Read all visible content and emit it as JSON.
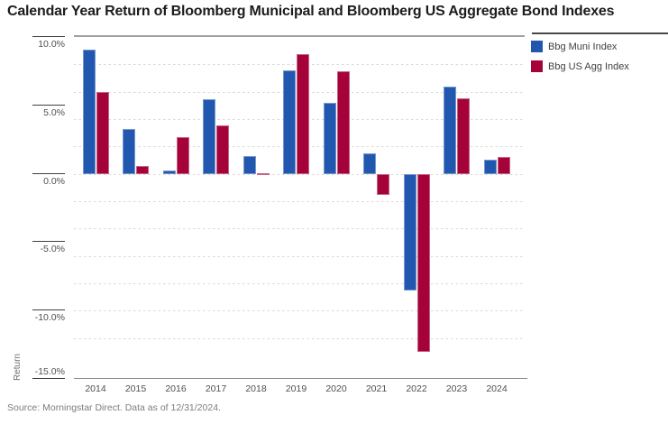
{
  "title": "Calendar Year Return of Bloomberg Municipal and Bloomberg US Aggregate Bond Indexes",
  "source": "Source: Morningstar Direct. Data as of 12/31/2024.",
  "legend": {
    "items": [
      {
        "label": "Bbg Muni Index",
        "color": "#2157ae"
      },
      {
        "label": "Bbg US Agg Index",
        "color": "#a40239"
      }
    ]
  },
  "chart_data": {
    "type": "bar",
    "categories": [
      "2014",
      "2015",
      "2016",
      "2017",
      "2018",
      "2019",
      "2020",
      "2021",
      "2022",
      "2023",
      "2024"
    ],
    "series": [
      {
        "name": "Bbg Muni Index",
        "color": "#2157ae",
        "values": [
          9.05,
          3.3,
          0.25,
          5.45,
          1.28,
          7.54,
          5.21,
          1.52,
          -8.53,
          6.4,
          1.05
        ]
      },
      {
        "name": "Bbg US Agg Index",
        "color": "#a40239",
        "values": [
          5.97,
          0.55,
          2.65,
          3.54,
          0.01,
          8.72,
          7.51,
          -1.54,
          -13.01,
          5.53,
          1.25
        ]
      }
    ],
    "title": "Calendar Year Return of Bloomberg Municipal and Bloomberg US Aggregate Bond Indexes",
    "xlabel": "",
    "ylabel": "Return",
    "ylim": [
      -15,
      10
    ],
    "yticks": [
      10,
      5,
      0,
      -5,
      -10,
      -15
    ],
    "ytick_labels": [
      "10.0%",
      "5.0%",
      "0.0%",
      "-5.0%",
      "-10.0%",
      "-15.0%"
    ],
    "minor_gridlines": [
      8,
      6,
      4,
      2,
      0,
      -2,
      -4,
      -6,
      -8,
      -10,
      -12
    ],
    "grid": "dotted-horizontal",
    "legend_position": "top-right"
  }
}
